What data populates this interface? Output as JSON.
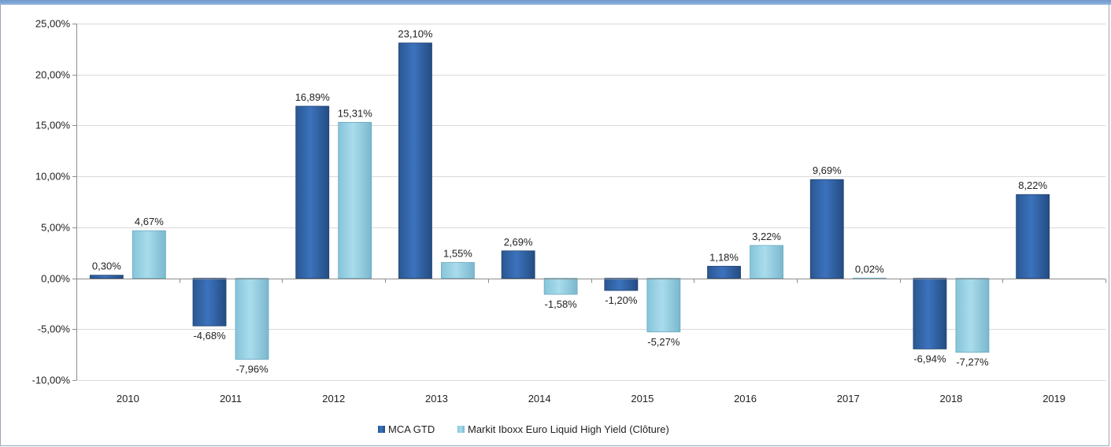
{
  "chart_data": {
    "type": "bar",
    "categories": [
      "2010",
      "2011",
      "2012",
      "2013",
      "2014",
      "2015",
      "2016",
      "2017",
      "2018",
      "2019"
    ],
    "series": [
      {
        "name": "MCA GTD",
        "values": [
          0.3,
          -4.68,
          16.89,
          23.1,
          2.69,
          -1.2,
          1.18,
          9.69,
          -6.94,
          8.22
        ],
        "labels": [
          "0,30%",
          "-4,68%",
          "16,89%",
          "23,10%",
          "2,69%",
          "-1,20%",
          "1,18%",
          "9,69%",
          "-6,94%",
          "8,22%"
        ]
      },
      {
        "name": "Markit Iboxx Euro Liquid High Yield (Clôture)",
        "values": [
          4.67,
          -7.96,
          15.31,
          1.55,
          -1.58,
          -5.27,
          3.22,
          0.02,
          -7.27,
          null
        ],
        "labels": [
          "4,67%",
          "-7,96%",
          "15,31%",
          "1,55%",
          "-1,58%",
          "-5,27%",
          "3,22%",
          "0,02%",
          "-7,27%",
          null
        ]
      }
    ],
    "ylim": [
      -10,
      25
    ],
    "yticks": [
      25,
      20,
      15,
      10,
      5,
      0,
      -5,
      -10
    ],
    "ytick_labels": [
      "25,00%",
      "20,00%",
      "15,00%",
      "10,00%",
      "5,00%",
      "0,00%",
      "-5,00%",
      "-10,00%"
    ],
    "grid": true,
    "legend": "bottom-center",
    "colors": [
      "#2e5f9e",
      "#94cfe2"
    ]
  }
}
